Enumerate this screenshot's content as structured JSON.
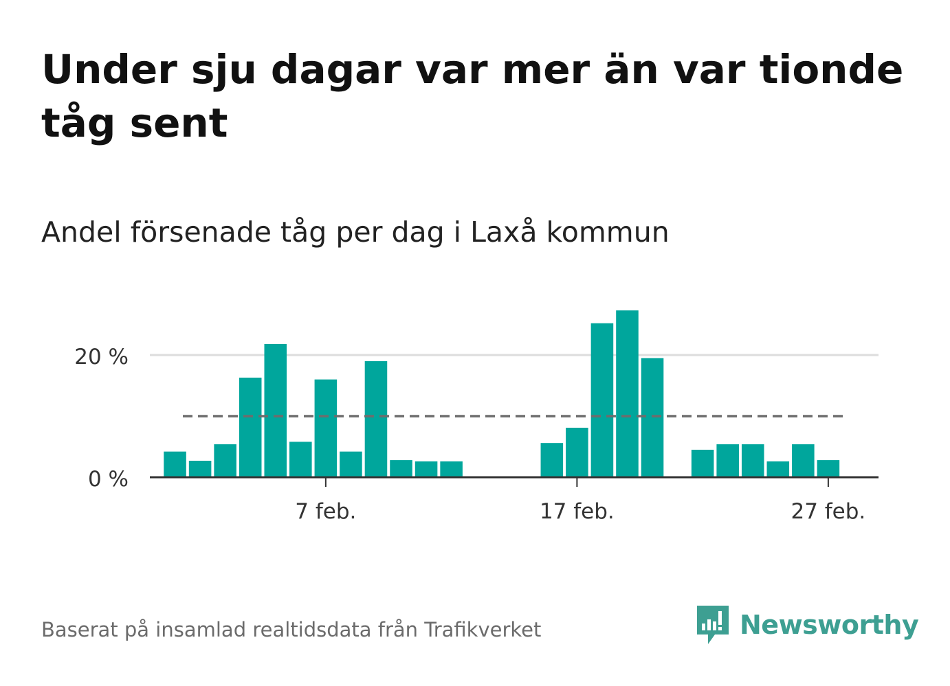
{
  "header": {
    "title": "Under sju dagar var mer än var tionde tåg sent",
    "subtitle": "Andel försenade tåg per dag i Laxå kommun"
  },
  "footer": {
    "source": "Baserat på insamlad realtidsdata från Trafikverket",
    "brand": "Newsworthy",
    "brand_icon": "newsworthy-logo-icon"
  },
  "colors": {
    "bar": "#00a69c",
    "reference_line": "#6d6d6d",
    "grid": "#dddddd",
    "axis": "#333333",
    "brand": "#3d9f92"
  },
  "chart_data": {
    "type": "bar",
    "title": "Andel försenade tåg per dag i Laxå kommun",
    "xlabel": "",
    "ylabel": "",
    "x_range": [
      "2019-01-31",
      "2019-03-01"
    ],
    "ylim": [
      0,
      30
    ],
    "y_ticks": [
      0,
      20
    ],
    "y_tick_labels": [
      "0 %",
      "20 %"
    ],
    "x_ticks": [
      "2019-02-07",
      "2019-02-17",
      "2019-02-27"
    ],
    "x_tick_labels": [
      "7 feb.",
      "17 feb.",
      "27 feb."
    ],
    "grid": true,
    "reference_line": 10,
    "series": [
      {
        "x": [
          "2019-02-01",
          "2019-02-02",
          "2019-02-03",
          "2019-02-04",
          "2019-02-05",
          "2019-02-06",
          "2019-02-07",
          "2019-02-08",
          "2019-02-09",
          "2019-02-10",
          "2019-02-11",
          "2019-02-12",
          "2019-02-16",
          "2019-02-17",
          "2019-02-18",
          "2019-02-19",
          "2019-02-20",
          "2019-02-22",
          "2019-02-23",
          "2019-02-24",
          "2019-02-25",
          "2019-02-26",
          "2019-02-27"
        ],
        "values": [
          4.2,
          2.7,
          5.4,
          16.3,
          21.8,
          5.8,
          16.0,
          4.2,
          19.0,
          2.8,
          2.6,
          2.6,
          5.6,
          8.1,
          25.2,
          27.3,
          19.5,
          4.5,
          5.4,
          5.4,
          2.6,
          5.4,
          2.8
        ]
      }
    ]
  }
}
